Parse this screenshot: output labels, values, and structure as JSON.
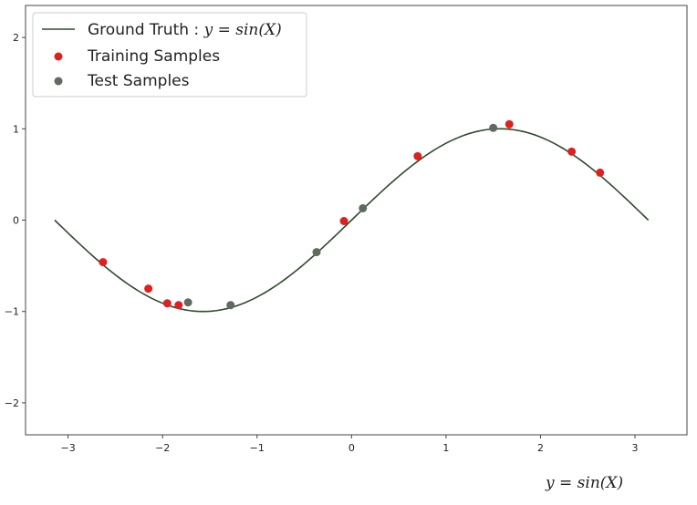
{
  "chart_data": {
    "type": "scatter",
    "title": "",
    "xlabel": "",
    "ylabel": "",
    "xlim": [
      -3.45,
      3.55
    ],
    "ylim": [
      -2.35,
      2.35
    ],
    "grid": false,
    "legend_position": "top-left",
    "x_ticks": [
      -3,
      -2,
      -1,
      0,
      1,
      2,
      3
    ],
    "x_tick_labels": [
      "−3",
      "−2",
      "−1",
      "0",
      "1",
      "2",
      "3"
    ],
    "y_ticks": [
      -2,
      -1,
      0,
      1,
      2
    ],
    "y_tick_labels": [
      "−2",
      "−1",
      "0",
      "1",
      "2"
    ],
    "curve": {
      "name": "Ground Truth : y = sin(X)",
      "function": "sin",
      "x_range": [
        -3.14159,
        3.14159
      ],
      "color": "#2f4a2f"
    },
    "series": [
      {
        "name": "Training Samples",
        "color": "#e02020",
        "x": [
          -2.63,
          -2.15,
          -1.95,
          -1.83,
          -0.08,
          0.7,
          1.67,
          2.33,
          2.63
        ],
        "y": [
          -0.46,
          -0.75,
          -0.91,
          -0.93,
          -0.01,
          0.7,
          1.05,
          0.75,
          0.52
        ]
      },
      {
        "name": "Test Samples",
        "color": "#5f6b5f",
        "x": [
          -1.73,
          -1.28,
          -0.37,
          0.12,
          1.5
        ],
        "y": [
          -0.9,
          -0.93,
          -0.35,
          0.13,
          1.01
        ]
      }
    ],
    "legend": {
      "line_label_prefix": "Ground Truth : ",
      "line_label_math": "y = sin(X)",
      "training_label": "Training Samples",
      "test_label": "Test Samples"
    }
  },
  "caption": "y = sin(X)"
}
